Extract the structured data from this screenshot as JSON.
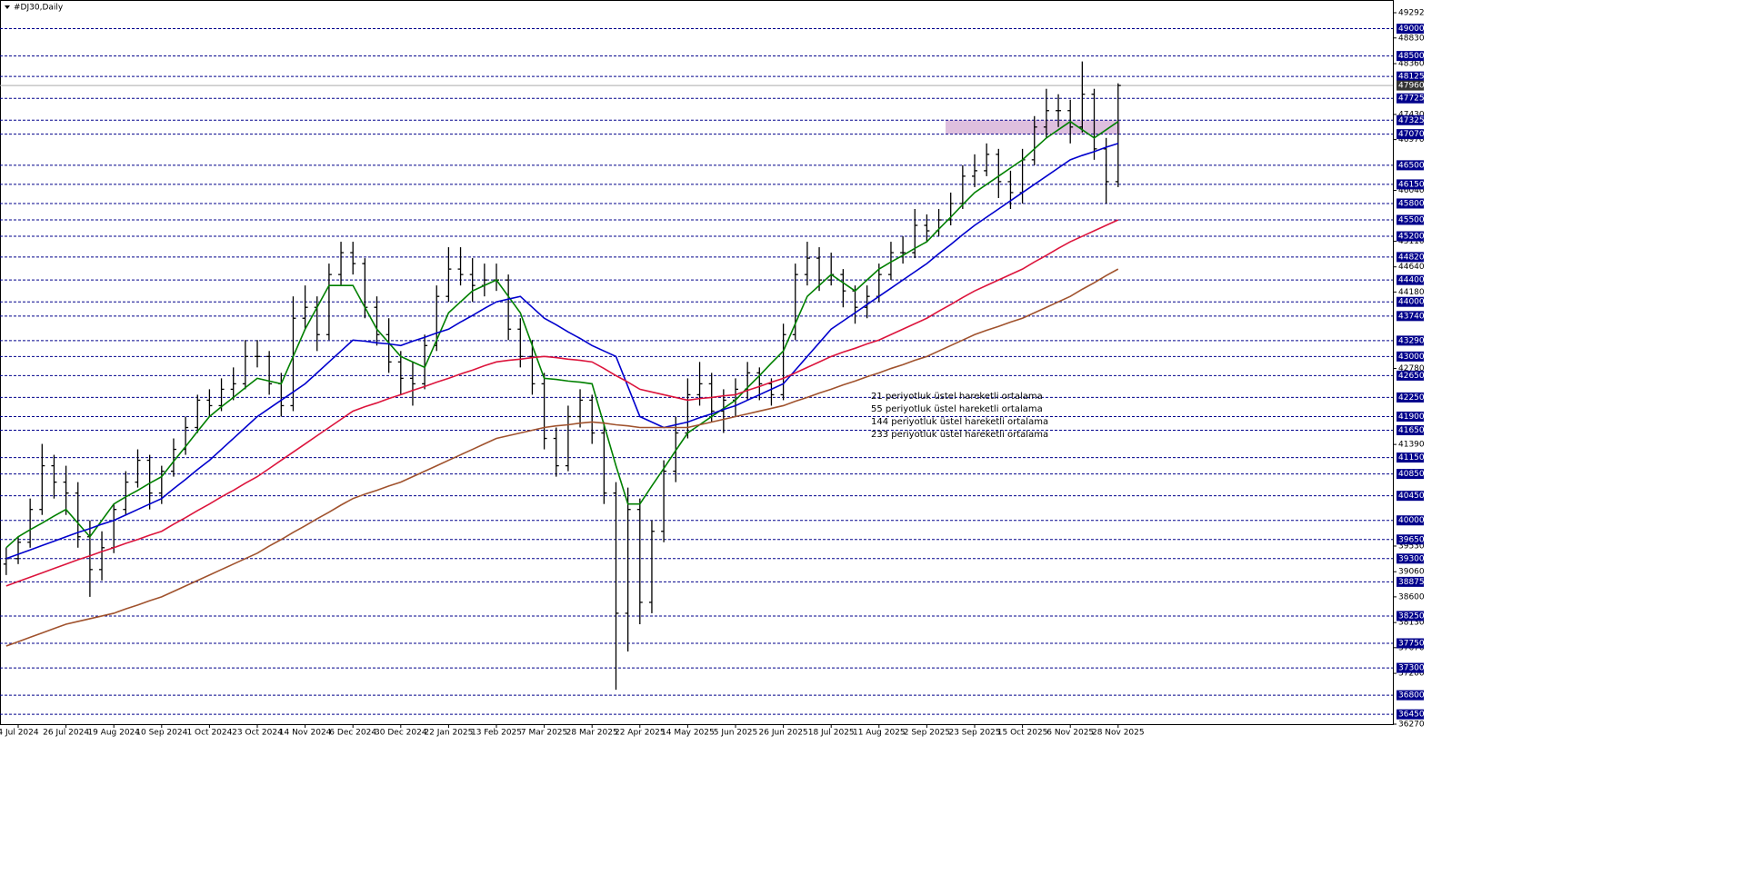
{
  "chart_data": {
    "type": "ohlc",
    "title": "#DJ30,Daily",
    "bar_color": "#000000",
    "ylim": [
      36270,
      49292
    ],
    "yticks": [
      49292,
      48830,
      48360,
      47430,
      46970,
      46040,
      45110,
      44640,
      44180,
      42780,
      41390,
      39530,
      39060,
      38600,
      38130,
      37670,
      37200,
      36270
    ],
    "levels": [
      49000,
      48500,
      48125,
      47725,
      47325,
      47070,
      46500,
      46150,
      45800,
      45500,
      45200,
      44820,
      44400,
      44000,
      43740,
      43290,
      43000,
      42650,
      42250,
      41900,
      41650,
      41150,
      40850,
      40450,
      40000,
      39650,
      39300,
      38875,
      38250,
      37750,
      37300,
      36800,
      36450
    ],
    "level_color": "#00008b",
    "last_price": 47960,
    "zone": [
      47070,
      47325
    ],
    "zone_color": "#d8b4d8",
    "x": [
      null,
      "4 Jul 2024",
      null,
      null,
      null,
      "26 Jul 2024",
      null,
      null,
      null,
      "19 Aug 2024",
      null,
      null,
      null,
      "10 Sep 2024",
      null,
      null,
      null,
      "1 Oct 2024",
      null,
      null,
      null,
      "23 Oct 2024",
      null,
      null,
      null,
      "14 Nov 2024",
      null,
      null,
      null,
      "6 Dec 2024",
      null,
      null,
      null,
      "30 Dec 2024",
      null,
      null,
      null,
      "22 Jan 2025",
      null,
      null,
      null,
      "13 Feb 2025",
      null,
      null,
      null,
      "7 Mar 2025",
      null,
      null,
      null,
      "28 Mar 2025",
      null,
      null,
      null,
      "22 Apr 2025",
      null,
      null,
      null,
      "14 May 2025",
      null,
      null,
      null,
      "5 Jun 2025",
      null,
      null,
      null,
      "26 Jun 2025",
      null,
      null,
      null,
      "18 Jul 2025",
      null,
      null,
      null,
      "11 Aug 2025",
      null,
      null,
      null,
      "2 Sep 2025",
      null,
      null,
      null,
      "23 Sep 2025",
      null,
      null,
      null,
      "15 Oct 2025",
      null,
      null,
      null,
      "6 Nov 2025",
      null,
      null,
      null,
      "28 Nov 2025"
    ],
    "ohlc": [
      [
        39200,
        39500,
        39000,
        39300
      ],
      [
        39300,
        39700,
        39200,
        39600
      ],
      [
        39600,
        40400,
        39500,
        40200
      ],
      [
        40200,
        41400,
        40100,
        41000
      ],
      [
        41000,
        41200,
        40400,
        40700
      ],
      [
        40700,
        41000,
        40100,
        40500
      ],
      [
        40500,
        40700,
        39500,
        39700
      ],
      [
        39700,
        40000,
        38600,
        39100
      ],
      [
        39100,
        39800,
        38900,
        39500
      ],
      [
        39500,
        40300,
        39400,
        40200
      ],
      [
        40200,
        40900,
        40100,
        40700
      ],
      [
        40700,
        41300,
        40600,
        41100
      ],
      [
        41100,
        41200,
        40200,
        40500
      ],
      [
        40500,
        41000,
        40300,
        40900
      ],
      [
        40900,
        41500,
        40800,
        41300
      ],
      [
        41300,
        41900,
        41200,
        41700
      ],
      [
        41700,
        42300,
        41600,
        42200
      ],
      [
        42200,
        42400,
        41900,
        42100
      ],
      [
        42100,
        42600,
        42000,
        42400
      ],
      [
        42400,
        42800,
        42200,
        42500
      ],
      [
        42500,
        43300,
        42400,
        43000
      ],
      [
        43000,
        43300,
        42800,
        43000
      ],
      [
        43000,
        43100,
        42300,
        42500
      ],
      [
        42500,
        42700,
        41900,
        42100
      ],
      [
        42100,
        44100,
        42000,
        43700
      ],
      [
        43700,
        44300,
        43500,
        43900
      ],
      [
        43900,
        44100,
        43100,
        43400
      ],
      [
        43400,
        44700,
        43300,
        44500
      ],
      [
        44500,
        45100,
        44300,
        44900
      ],
      [
        44900,
        45100,
        44500,
        44700
      ],
      [
        44700,
        44800,
        43700,
        43900
      ],
      [
        43900,
        44100,
        43200,
        43400
      ],
      [
        43400,
        43700,
        42700,
        42900
      ],
      [
        42900,
        43100,
        42300,
        42600
      ],
      [
        42600,
        42900,
        42100,
        42500
      ],
      [
        42500,
        43400,
        42400,
        43200
      ],
      [
        43200,
        44300,
        43100,
        44100
      ],
      [
        44100,
        45000,
        44000,
        44600
      ],
      [
        44600,
        45000,
        44300,
        44500
      ],
      [
        44500,
        44800,
        44000,
        44300
      ],
      [
        44300,
        44700,
        44100,
        44400
      ],
      [
        44400,
        44700,
        44200,
        44400
      ],
      [
        44400,
        44500,
        43300,
        43500
      ],
      [
        43500,
        43700,
        42800,
        43000
      ],
      [
        43000,
        43300,
        42300,
        42500
      ],
      [
        42500,
        42700,
        41300,
        41500
      ],
      [
        41500,
        41700,
        40800,
        41000
      ],
      [
        41000,
        42100,
        40900,
        41900
      ],
      [
        41900,
        42400,
        41700,
        42200
      ],
      [
        42200,
        42300,
        41400,
        41600
      ],
      [
        41600,
        41800,
        40300,
        40500
      ],
      [
        40500,
        40700,
        36900,
        38300
      ],
      [
        38300,
        40600,
        37600,
        40200
      ],
      [
        40200,
        40400,
        38100,
        38500
      ],
      [
        38500,
        40000,
        38300,
        39800
      ],
      [
        39800,
        41100,
        39600,
        40900
      ],
      [
        40900,
        41900,
        40700,
        41600
      ],
      [
        41600,
        42600,
        41500,
        42300
      ],
      [
        42300,
        42900,
        42100,
        42500
      ],
      [
        42500,
        42700,
        41800,
        42000
      ],
      [
        42000,
        42400,
        41600,
        42200
      ],
      [
        42200,
        42600,
        41900,
        42400
      ],
      [
        42400,
        42900,
        42200,
        42700
      ],
      [
        42700,
        42800,
        42200,
        42500
      ],
      [
        42500,
        42600,
        42100,
        42300
      ],
      [
        42300,
        43600,
        42200,
        43400
      ],
      [
        43400,
        44700,
        43300,
        44500
      ],
      [
        44500,
        45100,
        44300,
        44800
      ],
      [
        44800,
        45000,
        44200,
        44400
      ],
      [
        44400,
        44900,
        44300,
        44500
      ],
      [
        44500,
        44600,
        43900,
        44200
      ],
      [
        44200,
        44300,
        43600,
        43900
      ],
      [
        43900,
        44300,
        43700,
        44100
      ],
      [
        44100,
        44700,
        44000,
        44500
      ],
      [
        44500,
        45100,
        44400,
        44900
      ],
      [
        44900,
        45200,
        44700,
        44900
      ],
      [
        44900,
        45700,
        44800,
        45400
      ],
      [
        45400,
        45600,
        45100,
        45300
      ],
      [
        45300,
        45700,
        45200,
        45500
      ],
      [
        45500,
        46000,
        45400,
        45800
      ],
      [
        45800,
        46500,
        45700,
        46300
      ],
      [
        46300,
        46700,
        46100,
        46400
      ],
      [
        46400,
        46900,
        46300,
        46700
      ],
      [
        46700,
        46800,
        45900,
        46200
      ],
      [
        46200,
        46400,
        45700,
        46000
      ],
      [
        46000,
        46800,
        45800,
        46600
      ],
      [
        46600,
        47400,
        46500,
        47200
      ],
      [
        47200,
        47900,
        47000,
        47500
      ],
      [
        47500,
        47800,
        47200,
        47500
      ],
      [
        47500,
        47700,
        46900,
        47200
      ],
      [
        47200,
        48400,
        47100,
        47800
      ],
      [
        47800,
        47900,
        46600,
        46800
      ],
      [
        46800,
        47000,
        45800,
        46200
      ],
      [
        46200,
        48000,
        46100,
        47960
      ]
    ],
    "series": [
      {
        "name": "21 periyotluk üstel hareketli ortalama",
        "color": "#008000",
        "values": [
          39500,
          39700,
          39830,
          39950,
          40080,
          40200,
          39950,
          39700,
          40000,
          40300,
          40430,
          40550,
          40680,
          40800,
          41080,
          41350,
          41630,
          41900,
          42080,
          42250,
          42430,
          42600,
          42550,
          42500,
          43000,
          43500,
          43900,
          44300,
          44300,
          44300,
          43900,
          43500,
          43250,
          43000,
          42900,
          42800,
          43300,
          43800,
          44000,
          44200,
          44300,
          44400,
          44100,
          43800,
          43200,
          42600,
          42580,
          42550,
          42530,
          42500,
          41750,
          41000,
          40300,
          40300,
          40630,
          40950,
          41280,
          41600,
          41750,
          41900,
          42050,
          42200,
          42430,
          42650,
          42880,
          43100,
          43600,
          44100,
          44300,
          44500,
          44350,
          44200,
          44400,
          44600,
          44730,
          44850,
          44980,
          45100,
          45330,
          45550,
          45780,
          46000,
          46150,
          46300,
          46450,
          46600,
          46800,
          47000,
          47150,
          47300,
          47150,
          47000,
          47150,
          47300
        ]
      },
      {
        "name": "55 periyotluk üstel hareketli ortalama",
        "color": "#0000cd",
        "values": [
          39300,
          39380,
          39460,
          39540,
          39620,
          39700,
          39780,
          39850,
          39930,
          40000,
          40100,
          40200,
          40300,
          40400,
          40580,
          40750,
          40930,
          41100,
          41300,
          41500,
          41700,
          41900,
          42050,
          42200,
          42350,
          42500,
          42700,
          42900,
          43100,
          43300,
          43280,
          43250,
          43230,
          43200,
          43280,
          43350,
          43430,
          43500,
          43630,
          43750,
          43880,
          44000,
          44050,
          44100,
          43900,
          43700,
          43580,
          43450,
          43330,
          43200,
          43100,
          43000,
          42450,
          41900,
          41800,
          41700,
          41750,
          41800,
          41880,
          41950,
          42030,
          42100,
          42200,
          42300,
          42400,
          42500,
          42750,
          43000,
          43250,
          43500,
          43650,
          43800,
          43950,
          44100,
          44250,
          44400,
          44550,
          44700,
          44880,
          45050,
          45230,
          45400,
          45550,
          45700,
          45850,
          46000,
          46150,
          46300,
          46450,
          46600,
          46680,
          46750,
          46830,
          46900
        ]
      },
      {
        "name": "144 periyotluk üstel hareketli ortalama",
        "color": "#dc143c",
        "values": [
          38800,
          38880,
          38960,
          39040,
          39120,
          39200,
          39280,
          39350,
          39430,
          39500,
          39580,
          39650,
          39730,
          39800,
          39930,
          40050,
          40180,
          40300,
          40430,
          40550,
          40680,
          40800,
          40950,
          41100,
          41250,
          41400,
          41550,
          41700,
          41850,
          42000,
          42080,
          42150,
          42230,
          42300,
          42380,
          42450,
          42530,
          42600,
          42680,
          42750,
          42830,
          42900,
          42930,
          42950,
          42980,
          43000,
          42980,
          42950,
          42930,
          42900,
          42780,
          42650,
          42530,
          42400,
          42350,
          42300,
          42250,
          42200,
          42230,
          42250,
          42280,
          42300,
          42380,
          42450,
          42530,
          42600,
          42700,
          42800,
          42900,
          43000,
          43080,
          43150,
          43230,
          43300,
          43400,
          43500,
          43600,
          43700,
          43830,
          43950,
          44080,
          44200,
          44300,
          44400,
          44500,
          44600,
          44730,
          44850,
          44980,
          45100,
          45200,
          45300,
          45400,
          45500
        ]
      },
      {
        "name": "233 periyotluk üstel hareketli ortalama",
        "color": "#a0522d",
        "values": [
          37700,
          37780,
          37860,
          37940,
          38020,
          38100,
          38150,
          38200,
          38250,
          38300,
          38380,
          38450,
          38530,
          38600,
          38700,
          38800,
          38900,
          39000,
          39100,
          39200,
          39300,
          39400,
          39530,
          39650,
          39780,
          39900,
          40030,
          40150,
          40280,
          40400,
          40480,
          40550,
          40630,
          40700,
          40800,
          40900,
          41000,
          41100,
          41200,
          41300,
          41400,
          41500,
          41550,
          41600,
          41650,
          41700,
          41730,
          41750,
          41780,
          41800,
          41780,
          41750,
          41730,
          41700,
          41700,
          41700,
          41700,
          41700,
          41750,
          41800,
          41850,
          41900,
          41950,
          42000,
          42050,
          42100,
          42180,
          42250,
          42330,
          42400,
          42480,
          42550,
          42630,
          42700,
          42780,
          42850,
          42930,
          43000,
          43100,
          43200,
          43300,
          43400,
          43480,
          43550,
          43630,
          43700,
          43800,
          43900,
          44000,
          44100,
          44230,
          44350,
          44480,
          44600
        ]
      }
    ]
  }
}
